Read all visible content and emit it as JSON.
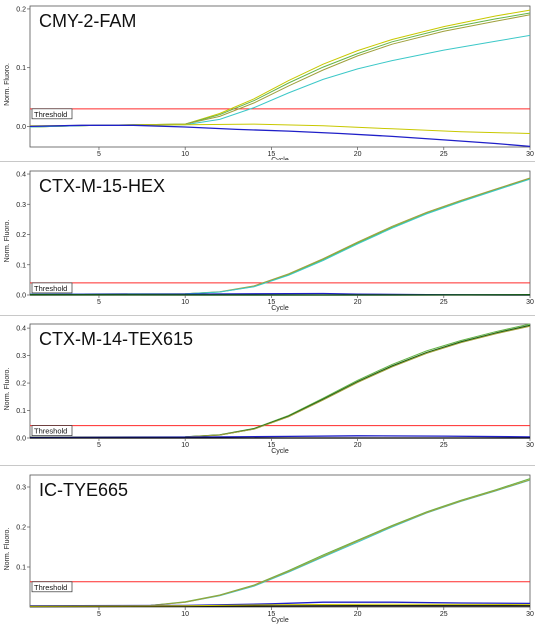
{
  "colors": {
    "threshold": "#ff2a2a",
    "blue": "#1f1fc8",
    "yellow": "#c8c800",
    "green": "#64b446",
    "olive": "#a0a03c",
    "cyan": "#3cc8c8",
    "darkgreen": "#145a14",
    "black": "#000000"
  },
  "chart_data": [
    {
      "type": "line",
      "title": "CMY-2-FAM",
      "xlabel": "Cycle",
      "ylabel": "Norm. Fluoro.",
      "xlim": [
        1,
        30
      ],
      "ylim": [
        -0.035,
        0.205
      ],
      "xticks": [
        5,
        10,
        15,
        20,
        25,
        30
      ],
      "yticks": [
        0.0,
        0.1,
        0.2
      ],
      "ytick_labels": [
        "0.0",
        "0.1",
        "0.2"
      ],
      "threshold": {
        "label": "Threshold",
        "value": 0.03
      },
      "series": [
        {
          "color": "yellow",
          "x": [
            1,
            5,
            10,
            12,
            14,
            16,
            18,
            20,
            22,
            25,
            28,
            30
          ],
          "y": [
            -0.001,
            0.002,
            0.004,
            0.022,
            0.047,
            0.078,
            0.106,
            0.129,
            0.148,
            0.17,
            0.188,
            0.198
          ]
        },
        {
          "color": "green",
          "x": [
            1,
            5,
            10,
            12,
            14,
            16,
            18,
            20,
            22,
            25,
            28,
            30
          ],
          "y": [
            -0.001,
            0.002,
            0.004,
            0.02,
            0.044,
            0.074,
            0.101,
            0.124,
            0.144,
            0.166,
            0.183,
            0.193
          ]
        },
        {
          "color": "olive",
          "x": [
            1,
            5,
            10,
            12,
            14,
            16,
            18,
            20,
            22,
            25,
            28,
            30
          ],
          "y": [
            -0.001,
            0.002,
            0.004,
            0.017,
            0.04,
            0.069,
            0.096,
            0.12,
            0.14,
            0.162,
            0.179,
            0.19
          ]
        },
        {
          "color": "cyan",
          "x": [
            1,
            5,
            10,
            12,
            14,
            16,
            18,
            20,
            22,
            25,
            28,
            30
          ],
          "y": [
            -0.001,
            0.002,
            0.003,
            0.012,
            0.032,
            0.057,
            0.08,
            0.098,
            0.112,
            0.13,
            0.145,
            0.155
          ]
        },
        {
          "color": "yellow",
          "x": [
            1,
            5,
            10,
            14,
            18,
            22,
            26,
            30
          ],
          "y": [
            0.001,
            0.002,
            0.003,
            0.004,
            0.001,
            -0.004,
            -0.009,
            -0.012
          ]
        },
        {
          "color": "blue",
          "x": [
            1,
            4,
            7,
            10,
            13,
            16,
            19,
            22,
            25,
            28,
            30
          ],
          "y": [
            0.0,
            0.002,
            0.002,
            -0.001,
            -0.005,
            -0.008,
            -0.012,
            -0.017,
            -0.023,
            -0.029,
            -0.034
          ]
        }
      ]
    },
    {
      "type": "line",
      "title": "CTX-M-15-HEX",
      "xlabel": "Cycle",
      "ylabel": "Norm. Fluoro.",
      "xlim": [
        1,
        30
      ],
      "ylim": [
        0,
        0.41
      ],
      "xticks": [
        5,
        10,
        15,
        20,
        25,
        30
      ],
      "yticks": [
        0.0,
        0.1,
        0.2,
        0.3,
        0.4
      ],
      "ytick_labels": [
        "0.0",
        "0.1",
        "0.2",
        "0.3",
        "0.4"
      ],
      "threshold": {
        "label": "Threshold",
        "value": 0.04
      },
      "series": [
        {
          "color": "green",
          "x": [
            1,
            10,
            12,
            14,
            16,
            18,
            20,
            22,
            24,
            26,
            28,
            30
          ],
          "y": [
            0.003,
            0.004,
            0.01,
            0.028,
            0.067,
            0.117,
            0.172,
            0.224,
            0.27,
            0.31,
            0.348,
            0.385
          ]
        },
        {
          "color": "olive",
          "x": [
            1,
            10,
            12,
            14,
            16,
            18,
            20,
            22,
            24,
            26,
            28,
            30
          ],
          "y": [
            0.003,
            0.004,
            0.011,
            0.03,
            0.07,
            0.12,
            0.175,
            0.227,
            0.273,
            0.313,
            0.35,
            0.387
          ]
        },
        {
          "color": "cyan",
          "x": [
            1,
            10,
            12,
            14,
            16,
            18,
            20,
            22,
            24,
            26,
            28,
            30
          ],
          "y": [
            0.003,
            0.004,
            0.01,
            0.027,
            0.065,
            0.114,
            0.169,
            0.221,
            0.268,
            0.308,
            0.346,
            0.383
          ]
        },
        {
          "color": "blue",
          "x": [
            1,
            10,
            18,
            20,
            24,
            30
          ],
          "y": [
            0.002,
            0.003,
            0.005,
            0.003,
            0.001,
            0.0
          ]
        },
        {
          "color": "black",
          "x": [
            1,
            10,
            20,
            30
          ],
          "y": [
            0.0,
            0.0,
            0.0,
            0.0
          ]
        },
        {
          "color": "darkgreen",
          "x": [
            1,
            15,
            22,
            30
          ],
          "y": [
            0.001,
            0.0,
            0.0,
            0.001
          ]
        }
      ]
    },
    {
      "type": "line",
      "title": "CTX-M-14-TEX615",
      "xlabel": "Cycle",
      "ylabel": "Norm. Fluoro.",
      "xlim": [
        1,
        30
      ],
      "ylim": [
        0,
        0.415
      ],
      "xticks": [
        5,
        10,
        15,
        20,
        25,
        30
      ],
      "yticks": [
        0.0,
        0.1,
        0.2,
        0.3,
        0.4
      ],
      "ytick_labels": [
        "0.0",
        "0.1",
        "0.2",
        "0.3",
        "0.4"
      ],
      "threshold": {
        "label": "Threshold",
        "value": 0.045
      },
      "series": [
        {
          "color": "green",
          "x": [
            1,
            10,
            12,
            14,
            16,
            18,
            20,
            22,
            24,
            26,
            28,
            30
          ],
          "y": [
            0.003,
            0.004,
            0.012,
            0.035,
            0.082,
            0.145,
            0.21,
            0.268,
            0.317,
            0.355,
            0.387,
            0.415
          ]
        },
        {
          "color": "darkgreen",
          "x": [
            1,
            10,
            12,
            14,
            16,
            18,
            20,
            22,
            24,
            26,
            28,
            30
          ],
          "y": [
            0.003,
            0.004,
            0.011,
            0.033,
            0.079,
            0.141,
            0.205,
            0.262,
            0.311,
            0.35,
            0.382,
            0.41
          ]
        },
        {
          "color": "olive",
          "x": [
            1,
            10,
            12,
            14,
            16,
            18,
            20,
            22,
            24,
            26,
            28,
            30
          ],
          "y": [
            0.003,
            0.004,
            0.011,
            0.032,
            0.077,
            0.138,
            0.202,
            0.259,
            0.308,
            0.347,
            0.379,
            0.407
          ]
        },
        {
          "color": "blue",
          "x": [
            1,
            10,
            16,
            20,
            25,
            30
          ],
          "y": [
            0.002,
            0.003,
            0.006,
            0.008,
            0.007,
            0.004
          ]
        },
        {
          "color": "black",
          "x": [
            1,
            10,
            20,
            30
          ],
          "y": [
            0.0,
            0.0,
            0.0,
            0.0
          ]
        }
      ]
    },
    {
      "type": "line",
      "title": "IC-TYE665",
      "xlabel": "Cycle",
      "ylabel": "Norm. Fluoro.",
      "xlim": [
        1,
        30
      ],
      "ylim": [
        0,
        0.33
      ],
      "xticks": [
        5,
        10,
        15,
        20,
        25,
        30
      ],
      "yticks": [
        0.1,
        0.2,
        0.3
      ],
      "ytick_labels": [
        "0.1",
        "0.2",
        "0.3"
      ],
      "threshold": {
        "label": "Threshold",
        "value": 0.063
      },
      "series": [
        {
          "color": "cyan",
          "x": [
            1,
            8,
            10,
            12,
            14,
            16,
            18,
            20,
            22,
            24,
            26,
            28,
            30
          ],
          "y": [
            0.002,
            0.004,
            0.012,
            0.028,
            0.052,
            0.087,
            0.125,
            0.162,
            0.2,
            0.235,
            0.264,
            0.29,
            0.317
          ]
        },
        {
          "color": "green",
          "x": [
            1,
            8,
            10,
            12,
            14,
            16,
            18,
            20,
            22,
            24,
            26,
            28,
            30
          ],
          "y": [
            0.002,
            0.004,
            0.013,
            0.03,
            0.055,
            0.091,
            0.13,
            0.167,
            0.204,
            0.238,
            0.267,
            0.293,
            0.321
          ]
        },
        {
          "color": "olive",
          "x": [
            1,
            8,
            10,
            12,
            14,
            16,
            18,
            20,
            22,
            24,
            26,
            28,
            30
          ],
          "y": [
            0.002,
            0.004,
            0.012,
            0.029,
            0.054,
            0.089,
            0.127,
            0.165,
            0.202,
            0.236,
            0.265,
            0.291,
            0.318
          ]
        },
        {
          "color": "blue",
          "x": [
            1,
            10,
            15,
            18,
            22,
            26,
            30
          ],
          "y": [
            0.003,
            0.004,
            0.008,
            0.012,
            0.012,
            0.01,
            0.009
          ]
        },
        {
          "color": "black",
          "x": [
            1,
            10,
            20,
            30
          ],
          "y": [
            0.001,
            0.002,
            0.003,
            0.003
          ]
        },
        {
          "color": "yellow",
          "x": [
            1,
            10,
            16,
            22,
            30
          ],
          "y": [
            0.002,
            0.003,
            0.006,
            0.007,
            0.006
          ]
        }
      ]
    }
  ]
}
